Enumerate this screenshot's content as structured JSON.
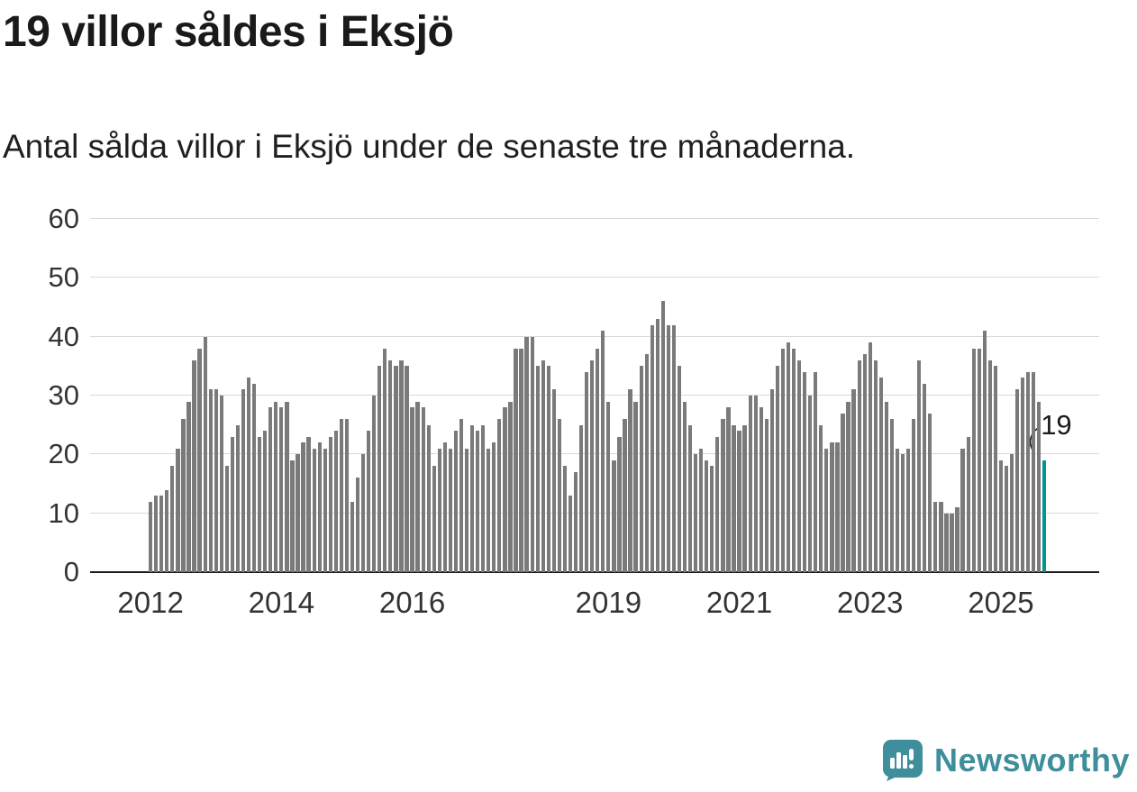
{
  "title": "19 villor såldes i Eksjö",
  "subtitle": "Antal sålda villor i Eksjö under de senaste tre månaderna.",
  "annotation": {
    "label": "19"
  },
  "branding": {
    "name": "Newsworthy"
  },
  "colors": {
    "bar": "#7a7a7a",
    "bar_highlight": "#00968c",
    "brand": "#3f8e9b",
    "grid": "#d9d9d9",
    "axis": "#1a1a1a",
    "text": "#1a1a1a"
  },
  "chart_data": {
    "type": "bar",
    "title": "19 villor såldes i Eksjö",
    "subtitle": "Antal sålda villor i Eksjö under de senaste tre månaderna.",
    "xlabel": "",
    "ylabel": "",
    "ylim": [
      0,
      60
    ],
    "y_ticks": [
      0,
      10,
      20,
      30,
      40,
      50,
      60
    ],
    "grid": true,
    "legend": false,
    "x_unit": "month",
    "x_tick_labels": [
      "2012",
      "2014",
      "2016",
      "2019",
      "2021",
      "2023",
      "2025"
    ],
    "x_ticks": [
      {
        "label": "2012",
        "month_index": 0
      },
      {
        "label": "2014",
        "month_index": 24
      },
      {
        "label": "2016",
        "month_index": 48
      },
      {
        "label": "2019",
        "month_index": 84
      },
      {
        "label": "2021",
        "month_index": 108
      },
      {
        "label": "2023",
        "month_index": 132
      },
      {
        "label": "2025",
        "month_index": 156
      }
    ],
    "highlight_last": true,
    "last_value_label": "19",
    "values": [
      12,
      13,
      13,
      14,
      18,
      21,
      26,
      29,
      36,
      38,
      40,
      31,
      31,
      30,
      18,
      23,
      25,
      31,
      33,
      32,
      23,
      24,
      28,
      29,
      28,
      29,
      19,
      20,
      22,
      23,
      21,
      22,
      21,
      23,
      24,
      26,
      26,
      12,
      16,
      20,
      24,
      30,
      35,
      38,
      36,
      35,
      36,
      35,
      28,
      29,
      28,
      25,
      18,
      21,
      22,
      21,
      24,
      26,
      21,
      25,
      24,
      25,
      21,
      22,
      26,
      28,
      29,
      38,
      38,
      40,
      40,
      35,
      36,
      35,
      31,
      26,
      18,
      13,
      17,
      25,
      34,
      36,
      38,
      41,
      29,
      19,
      23,
      26,
      31,
      29,
      35,
      37,
      42,
      43,
      46,
      42,
      42,
      35,
      29,
      25,
      20,
      21,
      19,
      18,
      23,
      26,
      28,
      25,
      24,
      25,
      30,
      30,
      28,
      26,
      31,
      35,
      38,
      39,
      38,
      36,
      34,
      30,
      34,
      25,
      21,
      22,
      22,
      27,
      29,
      31,
      36,
      37,
      39,
      36,
      33,
      29,
      26,
      21,
      20,
      21,
      26,
      36,
      32,
      27,
      12,
      12,
      10,
      10,
      11,
      21,
      23,
      38,
      38,
      41,
      36,
      35,
      19,
      18,
      20,
      31,
      33,
      34,
      34,
      29,
      19
    ]
  }
}
